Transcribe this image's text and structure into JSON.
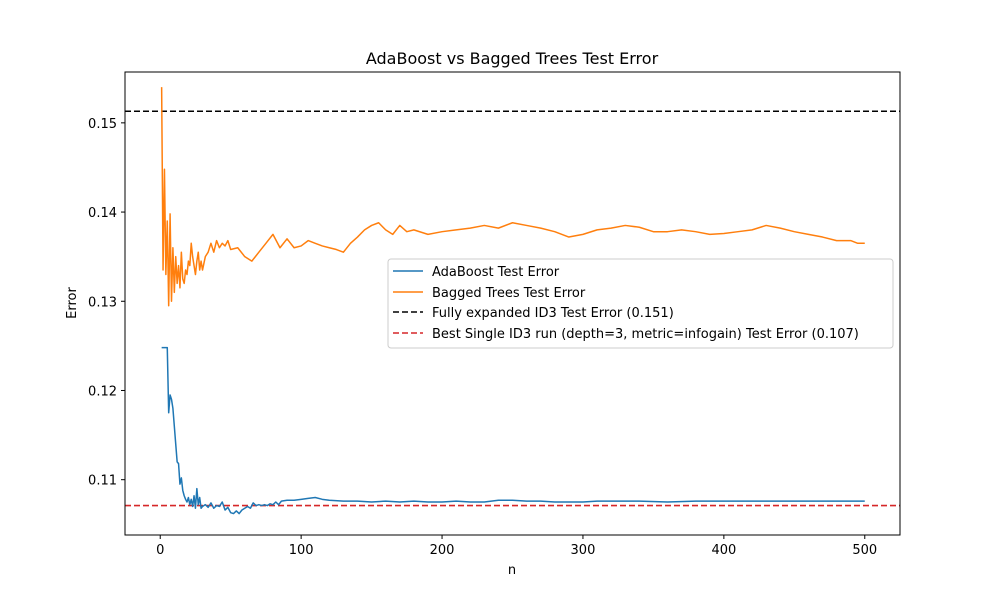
{
  "chart_data": {
    "type": "line",
    "title": "AdaBoost vs Bagged Trees Test Error",
    "xlabel": "n",
    "ylabel": "Error",
    "xlim": [
      -25,
      525
    ],
    "ylim": [
      0.1038,
      0.1557
    ],
    "xticks": [
      0,
      100,
      200,
      300,
      400,
      500
    ],
    "yticks": [
      0.11,
      0.12,
      0.13,
      0.14,
      0.15
    ],
    "xtick_labels": [
      "0",
      "100",
      "200",
      "300",
      "400",
      "500"
    ],
    "ytick_labels": [
      "0.11",
      "0.12",
      "0.13",
      "0.14",
      "0.15"
    ],
    "grid": false,
    "legend_position": "center-right",
    "series": [
      {
        "name": "AdaBoost Test Error",
        "color": "#1f77b4",
        "style": "solid",
        "x": [
          1,
          2,
          3,
          4,
          5,
          6,
          7,
          8,
          9,
          10,
          11,
          12,
          13,
          14,
          15,
          16,
          17,
          18,
          19,
          20,
          21,
          22,
          23,
          24,
          25,
          26,
          27,
          28,
          29,
          30,
          32,
          34,
          36,
          38,
          40,
          42,
          44,
          46,
          48,
          50,
          52,
          54,
          56,
          58,
          60,
          62,
          64,
          66,
          68,
          70,
          72,
          74,
          76,
          78,
          80,
          82,
          84,
          86,
          90,
          95,
          100,
          105,
          110,
          115,
          120,
          130,
          140,
          150,
          160,
          170,
          180,
          190,
          200,
          210,
          220,
          230,
          240,
          250,
          260,
          270,
          280,
          290,
          300,
          310,
          320,
          340,
          360,
          380,
          400,
          420,
          440,
          460,
          480,
          500
        ],
        "y": [
          0.1248,
          0.1248,
          0.1248,
          0.1248,
          0.1248,
          0.1175,
          0.1195,
          0.119,
          0.118,
          0.116,
          0.114,
          0.112,
          0.1118,
          0.1095,
          0.1102,
          0.1088,
          0.1082,
          0.1078,
          0.1075,
          0.108,
          0.1072,
          0.1078,
          0.107,
          0.1082,
          0.1068,
          0.109,
          0.1072,
          0.108,
          0.1068,
          0.107,
          0.1072,
          0.1069,
          0.1074,
          0.1068,
          0.1071,
          0.107,
          0.1075,
          0.1066,
          0.1069,
          0.1063,
          0.1062,
          0.1065,
          0.1062,
          0.1066,
          0.1068,
          0.107,
          0.1068,
          0.1074,
          0.1071,
          0.1072,
          0.1071,
          0.1072,
          0.1071,
          0.1073,
          0.1072,
          0.1075,
          0.1072,
          0.1076,
          0.1077,
          0.1077,
          0.1078,
          0.1079,
          0.108,
          0.1078,
          0.1077,
          0.1076,
          0.1076,
          0.1075,
          0.1076,
          0.1075,
          0.1076,
          0.1075,
          0.1075,
          0.1076,
          0.1075,
          0.1075,
          0.1077,
          0.1077,
          0.1076,
          0.1076,
          0.1075,
          0.1075,
          0.1075,
          0.1076,
          0.1076,
          0.1076,
          0.1075,
          0.1076,
          0.1076,
          0.1076,
          0.1076,
          0.1076,
          0.1076,
          0.1076
        ]
      },
      {
        "name": "Bagged Trees Test Error",
        "color": "#ff7f0e",
        "style": "solid",
        "x": [
          1,
          2,
          3,
          4,
          5,
          6,
          7,
          8,
          9,
          10,
          11,
          12,
          13,
          14,
          15,
          16,
          17,
          18,
          19,
          20,
          21,
          22,
          23,
          24,
          25,
          26,
          27,
          28,
          29,
          30,
          32,
          34,
          36,
          38,
          40,
          42,
          44,
          46,
          48,
          50,
          55,
          60,
          65,
          70,
          75,
          80,
          85,
          90,
          95,
          100,
          105,
          110,
          115,
          120,
          125,
          130,
          135,
          140,
          145,
          150,
          155,
          160,
          165,
          170,
          175,
          180,
          190,
          200,
          210,
          220,
          230,
          240,
          250,
          260,
          270,
          280,
          290,
          300,
          310,
          320,
          330,
          340,
          350,
          360,
          370,
          380,
          390,
          400,
          410,
          420,
          430,
          440,
          450,
          460,
          470,
          480,
          490,
          495,
          500
        ],
        "y": [
          0.154,
          0.1335,
          0.1448,
          0.133,
          0.139,
          0.1295,
          0.1398,
          0.13,
          0.136,
          0.131,
          0.135,
          0.132,
          0.134,
          0.1315,
          0.1355,
          0.1325,
          0.132,
          0.1335,
          0.133,
          0.1345,
          0.134,
          0.1365,
          0.135,
          0.134,
          0.133,
          0.1345,
          0.1355,
          0.1335,
          0.1345,
          0.1335,
          0.135,
          0.1355,
          0.1365,
          0.1355,
          0.1368,
          0.136,
          0.1365,
          0.1362,
          0.1368,
          0.1358,
          0.136,
          0.135,
          0.1345,
          0.1355,
          0.1365,
          0.1375,
          0.136,
          0.137,
          0.136,
          0.1362,
          0.1368,
          0.1365,
          0.1362,
          0.136,
          0.1358,
          0.1355,
          0.1365,
          0.1372,
          0.138,
          0.1385,
          0.1388,
          0.138,
          0.1375,
          0.1385,
          0.1378,
          0.138,
          0.1375,
          0.1378,
          0.138,
          0.1382,
          0.1385,
          0.1382,
          0.1388,
          0.1385,
          0.1382,
          0.1378,
          0.1372,
          0.1375,
          0.138,
          0.1382,
          0.1385,
          0.1383,
          0.1378,
          0.1378,
          0.138,
          0.1378,
          0.1375,
          0.1376,
          0.1378,
          0.138,
          0.1385,
          0.1382,
          0.1378,
          0.1375,
          0.1372,
          0.1368,
          0.1368,
          0.1365,
          0.1365
        ]
      }
    ],
    "hlines": [
      {
        "name": "Fully expanded ID3 Test Error (0.151)",
        "y": 0.1513,
        "color": "#000000",
        "style": "dashed"
      },
      {
        "name": "Best Single ID3 run (depth=3, metric=infogain) Test Error (0.107)",
        "y": 0.1071,
        "color": "#d62728",
        "style": "dashed"
      }
    ]
  }
}
